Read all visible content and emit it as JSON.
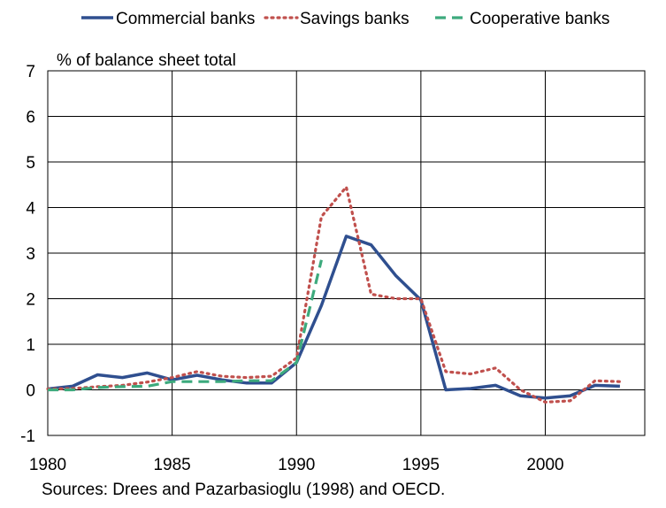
{
  "chart_data": {
    "type": "line",
    "ylabel": "% of balance sheet total",
    "xlim": [
      1980,
      2004
    ],
    "ylim": [
      -1,
      7
    ],
    "x_ticks": [
      1980,
      1985,
      1990,
      1995,
      2000
    ],
    "y_ticks": [
      -1,
      0,
      1,
      2,
      3,
      4,
      5,
      6,
      7
    ],
    "grid": true,
    "legend_position": "top",
    "source_note": "Sources: Drees and Pazarbasioglu (1998) and OECD.",
    "series": [
      {
        "name": "Commercial banks",
        "color": "#2F4F8F",
        "style": "solid",
        "x": [
          1980,
          1981,
          1982,
          1983,
          1984,
          1985,
          1986,
          1987,
          1988,
          1989,
          1990,
          1991,
          1992,
          1993,
          1994,
          1995,
          1996,
          1997,
          1998,
          1999,
          2000,
          2001,
          2002,
          2003
        ],
        "values": [
          0.02,
          0.08,
          0.33,
          0.27,
          0.37,
          0.22,
          0.32,
          0.22,
          0.15,
          0.15,
          0.6,
          1.85,
          3.37,
          3.18,
          2.5,
          1.97,
          0.0,
          0.03,
          0.1,
          -0.13,
          -0.18,
          -0.13,
          0.1,
          0.08
        ]
      },
      {
        "name": "Savings banks",
        "color": "#C0504D",
        "style": "dotted",
        "x": [
          1980,
          1981,
          1982,
          1983,
          1984,
          1985,
          1986,
          1987,
          1988,
          1989,
          1990,
          1991,
          1992,
          1993,
          1994,
          1995,
          1996,
          1997,
          1998,
          1999,
          2000,
          2001,
          2002,
          2003
        ],
        "values": [
          0.02,
          0.03,
          0.07,
          0.1,
          0.17,
          0.27,
          0.4,
          0.3,
          0.27,
          0.3,
          0.7,
          3.8,
          4.45,
          2.1,
          2.0,
          2.0,
          0.4,
          0.35,
          0.48,
          0.0,
          -0.27,
          -0.24,
          0.2,
          0.18
        ]
      },
      {
        "name": "Cooperative banks",
        "color": "#3DAA7D",
        "style": "dashed",
        "x": [
          1980,
          1981,
          1982,
          1983,
          1984,
          1985,
          1986,
          1987,
          1988,
          1989,
          1990,
          1991
        ],
        "values": [
          0.0,
          0.0,
          0.05,
          0.07,
          0.08,
          0.18,
          0.18,
          0.18,
          0.2,
          0.2,
          0.6,
          2.85
        ]
      }
    ]
  }
}
